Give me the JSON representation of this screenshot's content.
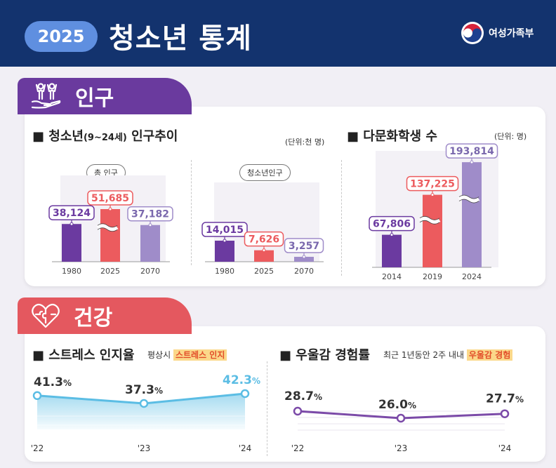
{
  "header": {
    "year": "2025",
    "title": "청소년 통계",
    "ministry": "여성가족부"
  },
  "colors": {
    "header_bg": "#13336e",
    "population": "#6a3a9e",
    "health": "#e4585f",
    "bar_purple": "#6b3aa0",
    "bar_red": "#ec5b5e",
    "bar_lavender": "#9f8cc9",
    "stress_line": "#5bbde4",
    "depression_line": "#7b4aa8",
    "highlight_text": "#e24c28"
  },
  "sections": {
    "population": {
      "label": "인구",
      "youth_title": "청소년",
      "youth_title_range": "(9~24세)",
      "youth_title_rest": " 인구추이",
      "youth_unit": "(단위:천 명)",
      "total_label": "총 인구",
      "youth_label": "청소년인구",
      "multicultural_title": "다문화학생 수",
      "multicultural_unit": "(단위: 명)"
    },
    "health": {
      "label": "건강",
      "stress_title": "스트레스 인지율",
      "stress_note_pre": "평상시 ",
      "stress_note_hl": "스트레스 인지",
      "depression_title": "우울감 경험률",
      "depression_note_pre": "최근 1년동안 2주 내내 ",
      "depression_note_hl": "우울감 경험"
    }
  },
  "chart_data": [
    {
      "type": "bar",
      "title": "총 인구",
      "categories": [
        "1980",
        "2025",
        "2070"
      ],
      "values": [
        38124,
        51685,
        37182
      ],
      "labels": [
        "38,124",
        "51,685",
        "37,182"
      ],
      "axis_break": true
    },
    {
      "type": "bar",
      "title": "청소년인구",
      "categories": [
        "1980",
        "2025",
        "2070"
      ],
      "values": [
        14015,
        7626,
        3257
      ],
      "labels": [
        "14,015",
        "7,626",
        "3,257"
      ]
    },
    {
      "type": "bar",
      "title": "다문화학생 수",
      "categories": [
        "2014",
        "2019",
        "2024"
      ],
      "values": [
        67806,
        137225,
        193814
      ],
      "labels": [
        "67,806",
        "137,225",
        "193,814"
      ],
      "axis_break": true
    },
    {
      "type": "area",
      "title": "스트레스 인지율",
      "categories": [
        "'22",
        "'23",
        "'24"
      ],
      "values": [
        41.3,
        37.3,
        42.3
      ],
      "labels": [
        "41.3",
        "37.3",
        "42.3"
      ],
      "unit": "%"
    },
    {
      "type": "line",
      "title": "우울감 경험률",
      "categories": [
        "'22",
        "'23",
        "'24"
      ],
      "values": [
        28.7,
        26.0,
        27.7
      ],
      "labels": [
        "28.7",
        "26.0",
        "27.7"
      ],
      "unit": "%"
    }
  ]
}
